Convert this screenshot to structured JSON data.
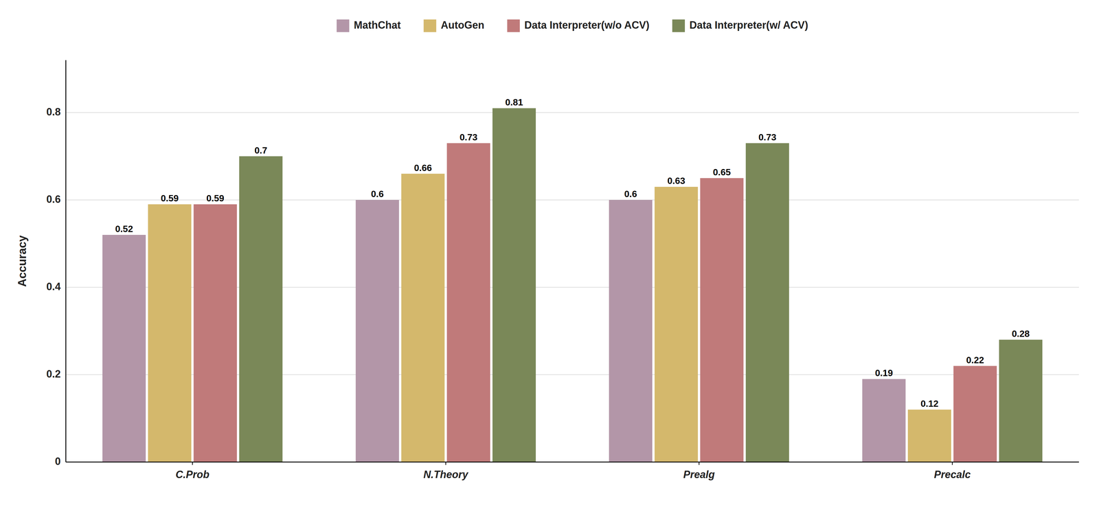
{
  "chart_data": {
    "type": "bar",
    "categories": [
      "C.Prob",
      "N.Theory",
      "Prealg",
      "Precalc"
    ],
    "series": [
      {
        "name": "MathChat",
        "color": "#b396a8",
        "values": [
          0.52,
          0.6,
          0.6,
          0.19
        ]
      },
      {
        "name": "AutoGen",
        "color": "#d4b86c",
        "values": [
          0.59,
          0.66,
          0.63,
          0.12
        ]
      },
      {
        "name": "Data Interpreter(w/o ACV)",
        "color": "#c07a7a",
        "values": [
          0.59,
          0.73,
          0.65,
          0.22
        ]
      },
      {
        "name": "Data Interpreter(w/ ACV)",
        "color": "#7a8858",
        "values": [
          0.7,
          0.81,
          0.73,
          0.28
        ]
      }
    ],
    "ylabel": "Accuracy",
    "ylim": [
      0,
      0.92
    ],
    "yticks": [
      0,
      0.2,
      0.4,
      0.6,
      0.8
    ],
    "grid": true,
    "legend": "top",
    "data_labels": true
  }
}
